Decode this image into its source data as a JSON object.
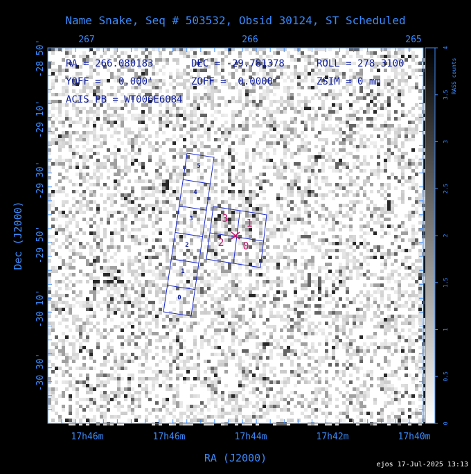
{
  "title": "Name Snake, Seq # 503532, Obsid 30124, ST Scheduled",
  "info": {
    "line1": [
      "RA = 266.080183",
      "DEC = -29.781378",
      "ROLL = 278.3100"
    ],
    "line2": [
      "YOFF =   0.000'",
      "ZOFF =  0.0000'",
      "ZSIM = 0 mm"
    ],
    "line3": "ACIS PB = WT006E6084"
  },
  "axes": {
    "xlabel": "RA (J2000)",
    "ylabel": "Dec (J2000)",
    "bottom_ticks": [
      "17h46m",
      "17h46m",
      "17h44m",
      "17h42m",
      "17h40m"
    ],
    "top_ticks": [
      "267",
      "266",
      "265"
    ],
    "left_ticks": [
      "-28 50'",
      "-29 10'",
      "-29 30'",
      "-29 50'",
      "-30 10'",
      "-30 30'"
    ]
  },
  "colorbar": {
    "label": "RASS counts",
    "ticks": [
      "0",
      "0.5",
      "1",
      "1.5",
      "2",
      "2.5",
      "3",
      "3.5",
      "4"
    ]
  },
  "acis_s_chips": [
    "0",
    "1",
    "2",
    "3",
    "4",
    "5"
  ],
  "acis_i_chips": [
    "0",
    "1",
    "2",
    "3"
  ],
  "colors": {
    "background": "#000000",
    "axis": "#3a8cff",
    "chip_outline": "#1a2acc",
    "chip_text": "#0a1a9a",
    "i_chip_text": "#c21a70"
  },
  "footer": "ejos 17-Jul-2025 13:13"
}
